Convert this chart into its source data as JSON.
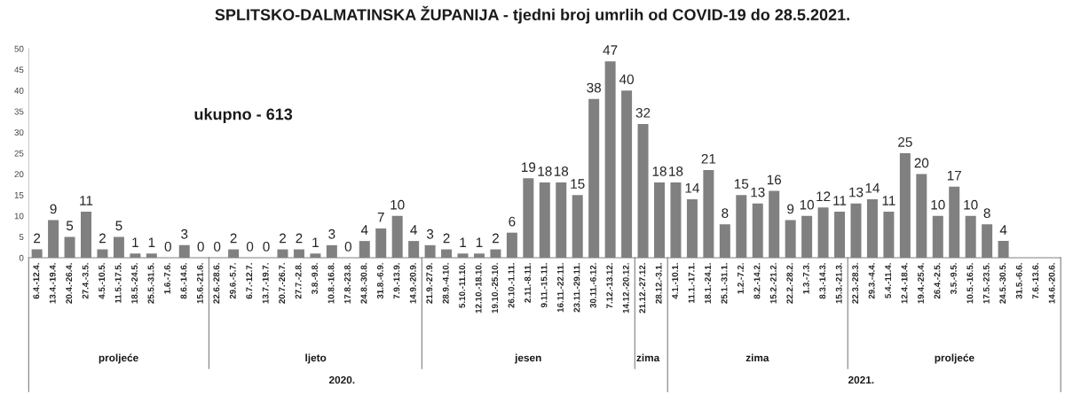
{
  "chart_data": {
    "type": "bar",
    "title": "SPLITSKO-DALMATINSKA ŽUPANIJA - tjedni broj umrlih od COVID-19 do 28.5.2021.",
    "categories": [
      "6.4.-12.4.",
      "13.4.-19.4.",
      "20.4.-26.4.",
      "27.4.-3.5.",
      "4.5.-10.5.",
      "11.5.-17.5.",
      "18.5.-24.5.",
      "25.5.-31.5.",
      "1.6.-7.6.",
      "8.6.-14.6.",
      "15.6.-21.6.",
      "22.6.-28.6.",
      "29.6.-5.7.",
      "6.7.-12.7.",
      "13.7.-19.7.",
      "20.7.-26.7.",
      "27.7.-2.8.",
      "3.8.-9.8.",
      "10.8.-16.8.",
      "17.8.-23.8.",
      "24.8.-30.8.",
      "31.8.-6.9.",
      "7.9.-13.9.",
      "14.9.-20.9.",
      "21.9.-27.9.",
      "28.9.-4.10.",
      "5.10.-11.10.",
      "12.10.-18.10.",
      "19.10.-25.10.",
      "26.10.-1.11.",
      "2.11.-8.11.",
      "9.11.-15.11.",
      "16.11.-22.11.",
      "23.11.-29.11.",
      "30.11.-6.12.",
      "7.12.-13.12.",
      "14.12.-20.12.",
      "21.12.-27.12.",
      "28.12.-3.1.",
      "4.1.-10.1.",
      "11.1.-17.1.",
      "18.1.-24.1.",
      "25.1.-31.1.",
      "1.2.-7.2.",
      "8.2.-14.2.",
      "15.2.-21.2.",
      "22.2.-28.2.",
      "1.3.-7.3.",
      "8.3.-14.3.",
      "15.3.-21.3.",
      "22.3.-28.3.",
      "29.3.-4.4.",
      "5.4.-11.4.",
      "12.4.-18.4.",
      "19.4.-25.4.",
      "26.4.-2.5.",
      "3.5.-9.5.",
      "10.5.-16.5.",
      "17.5.-23.5.",
      "24.5.-30.5.",
      "31.5.-6.6.",
      "7.6.-13.6.",
      "14.6.-20.6."
    ],
    "values": [
      2,
      9,
      5,
      11,
      2,
      5,
      1,
      1,
      0,
      3,
      0,
      0,
      2,
      0,
      0,
      2,
      2,
      1,
      3,
      0,
      4,
      7,
      10,
      4,
      3,
      2,
      1,
      1,
      2,
      6,
      19,
      18,
      18,
      15,
      38,
      47,
      40,
      32,
      18,
      18,
      14,
      21,
      8,
      15,
      13,
      16,
      9,
      10,
      12,
      11,
      13,
      14,
      11,
      25,
      20,
      10,
      17,
      10,
      8,
      4,
      null,
      null,
      null
    ],
    "color": "#808080",
    "ylim": [
      0,
      50
    ],
    "yticks": [
      0,
      5,
      10,
      15,
      20,
      25,
      30,
      35,
      40,
      45,
      50
    ],
    "data_labels": true,
    "annotations": [
      "ukupno - 613",
      "proljeće",
      "ljeto",
      "jesen",
      "zima",
      "zima",
      "proljeće",
      "2020.",
      "2021."
    ]
  }
}
